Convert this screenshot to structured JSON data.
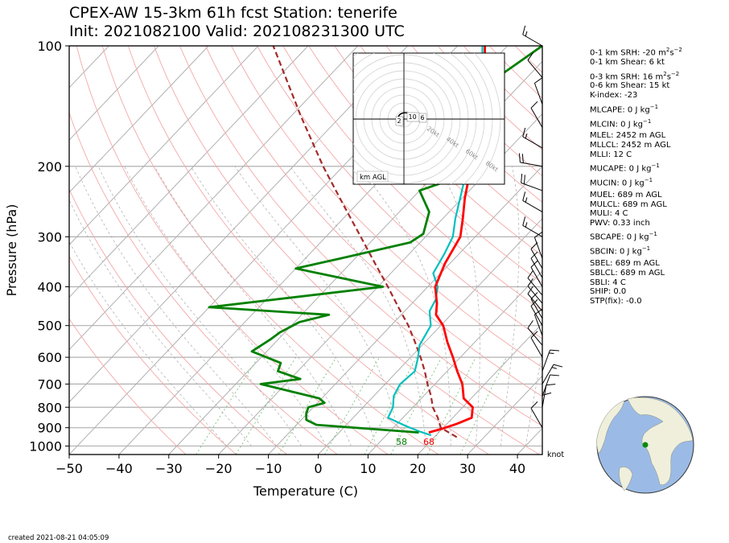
{
  "header": {
    "title_line1": "CPEX-AW 15-3km  61h fcst  Station: tenerife",
    "title_line2": "Init: 2021082100  Valid: 202108231300 UTC"
  },
  "footer": {
    "created": "created 2021-08-21 04:05:09"
  },
  "barb_units": "knot",
  "hodograph": {
    "label": "km AGL",
    "ring_labels": [
      "20kt",
      "40kt",
      "60kt",
      "80kt"
    ],
    "height_labels": [
      "2",
      "10",
      "6"
    ]
  },
  "indices": [
    {
      "label": "0-1 km SRH",
      "value": "-20",
      "unit": "m2s-2"
    },
    {
      "label": "0-1 km Shear",
      "value": "6",
      "unit": "kt"
    },
    {
      "label": "0-3 km SRH",
      "value": "16",
      "unit": "m2s-2"
    },
    {
      "label": "0-6 km Shear",
      "value": "15",
      "unit": "kt"
    },
    {
      "label": "K-index",
      "value": "-23",
      "unit": ""
    },
    {
      "label": "MLCAPE",
      "value": "0",
      "unit": "J kg-1"
    },
    {
      "label": "MLCIN",
      "value": "0",
      "unit": "J kg-1"
    },
    {
      "label": "MLEL",
      "value": "2452",
      "unit": "m AGL"
    },
    {
      "label": "MLLCL",
      "value": "2452",
      "unit": "m AGL"
    },
    {
      "label": "MLLI",
      "value": "12",
      "unit": "C"
    },
    {
      "label": "MUCAPE",
      "value": "0",
      "unit": "J kg-1"
    },
    {
      "label": "MUCIN",
      "value": "0",
      "unit": "J kg-1"
    },
    {
      "label": "MUEL",
      "value": "689",
      "unit": "m AGL"
    },
    {
      "label": "MULCL",
      "value": "689",
      "unit": "m AGL"
    },
    {
      "label": "MULI",
      "value": "4",
      "unit": "C"
    },
    {
      "label": "PWV",
      "value": "0.33",
      "unit": "inch"
    },
    {
      "label": "SBCAPE",
      "value": "0",
      "unit": "J kg-1"
    },
    {
      "label": "SBCIN",
      "value": "0",
      "unit": "J kg-1"
    },
    {
      "label": "SBEL",
      "value": "689",
      "unit": "m AGL"
    },
    {
      "label": "SBLCL",
      "value": "689",
      "unit": "m AGL"
    },
    {
      "label": "SBLI",
      "value": "4",
      "unit": "C"
    },
    {
      "label": "SHIP",
      "value": "0.0",
      "unit": ""
    },
    {
      "label": "STP(fix)",
      "value": "-0.0",
      "unit": ""
    }
  ],
  "chart_data": {
    "type": "line",
    "chart_kind": "skew-T log-P",
    "xlabel": "Temperature (C)",
    "ylabel": "Pressure (hPa)",
    "xlim": [
      -50,
      45
    ],
    "ylim": [
      1050,
      100
    ],
    "y_scale": "log",
    "x_ticks": [
      -50,
      -40,
      -30,
      -20,
      -10,
      0,
      10,
      20,
      30,
      40
    ],
    "y_ticks": [
      100,
      200,
      300,
      400,
      500,
      600,
      700,
      800,
      900,
      1000
    ],
    "surface_labels": {
      "dewpoint": "58",
      "temperature": "68"
    },
    "colors": {
      "temperature": "#ff0000",
      "dewpoint": "#008000",
      "virtual": "#00bfbf",
      "parcel": "#a52a2a"
    },
    "series": [
      {
        "key": "temperature",
        "points": [
          [
            925,
            18
          ],
          [
            905,
            20
          ],
          [
            880,
            22
          ],
          [
            850,
            23.8
          ],
          [
            800,
            22
          ],
          [
            760,
            18.5
          ],
          [
            700,
            15.5
          ],
          [
            650,
            12
          ],
          [
            600,
            8.5
          ],
          [
            550,
            4.5
          ],
          [
            500,
            0.5
          ],
          [
            470,
            -3
          ],
          [
            440,
            -5
          ],
          [
            400,
            -8.5
          ],
          [
            350,
            -11
          ],
          [
            300,
            -13
          ],
          [
            270,
            -16
          ],
          [
            240,
            -19.5
          ],
          [
            210,
            -23
          ],
          [
            180,
            -27.5
          ],
          [
            160,
            -31
          ],
          [
            140,
            -34.5
          ],
          [
            120,
            -38.5
          ],
          [
            100,
            -44.5
          ]
        ]
      },
      {
        "key": "dewpoint",
        "points": [
          [
            925,
            16
          ],
          [
            905,
            5
          ],
          [
            885,
            -6
          ],
          [
            860,
            -9
          ],
          [
            830,
            -10.2
          ],
          [
            800,
            -11
          ],
          [
            780,
            -8.6
          ],
          [
            760,
            -10.5
          ],
          [
            700,
            -25
          ],
          [
            680,
            -18
          ],
          [
            650,
            -24
          ],
          [
            620,
            -25
          ],
          [
            580,
            -33
          ],
          [
            540,
            -31.5
          ],
          [
            520,
            -31
          ],
          [
            490,
            -29
          ],
          [
            470,
            -24.5
          ],
          [
            450,
            -50
          ],
          [
            400,
            -19
          ],
          [
            360,
            -40
          ],
          [
            340,
            -33
          ],
          [
            310,
            -22
          ],
          [
            295,
            -21
          ],
          [
            260,
            -24
          ],
          [
            230,
            -30
          ],
          [
            220,
            -27
          ],
          [
            200,
            -30
          ],
          [
            180,
            -29
          ],
          [
            150,
            -31
          ],
          [
            120,
            -36
          ],
          [
            100,
            -33
          ]
        ]
      },
      {
        "key": "virtual",
        "points": [
          [
            940,
            19
          ],
          [
            920,
            16
          ],
          [
            890,
            12
          ],
          [
            850,
            7
          ],
          [
            800,
            6
          ],
          [
            750,
            4
          ],
          [
            700,
            3
          ],
          [
            650,
            3.5
          ],
          [
            600,
            1.5
          ],
          [
            560,
            -0.5
          ],
          [
            500,
            -2
          ],
          [
            460,
            -5
          ],
          [
            430,
            -6
          ],
          [
            400,
            -8
          ],
          [
            370,
            -11.5
          ],
          [
            330,
            -13
          ],
          [
            300,
            -14.5
          ],
          [
            270,
            -17.5
          ],
          [
            230,
            -21.5
          ],
          [
            200,
            -25
          ],
          [
            180,
            -29
          ],
          [
            160,
            -32.5
          ],
          [
            140,
            -35
          ],
          [
            120,
            -39
          ],
          [
            100,
            -45
          ]
        ]
      },
      {
        "key": "parcel",
        "points": [
          [
            950,
            24.5
          ],
          [
            900,
            19.5
          ],
          [
            850,
            17
          ],
          [
            800,
            14
          ],
          [
            750,
            11.5
          ],
          [
            700,
            8.5
          ],
          [
            650,
            5.5
          ],
          [
            600,
            2
          ],
          [
            550,
            -2
          ],
          [
            500,
            -6.5
          ],
          [
            450,
            -12
          ],
          [
            400,
            -18
          ],
          [
            350,
            -25
          ],
          [
            300,
            -33
          ],
          [
            250,
            -42.5
          ],
          [
            200,
            -54
          ],
          [
            150,
            -68
          ],
          [
            100,
            -87
          ]
        ]
      }
    ],
    "wind_barbs": [
      {
        "p": 100,
        "speed": 15,
        "dir": 300
      },
      {
        "p": 120,
        "speed": 10,
        "dir": 320
      },
      {
        "p": 140,
        "speed": 10,
        "dir": 340
      },
      {
        "p": 160,
        "speed": 10,
        "dir": 330
      },
      {
        "p": 180,
        "speed": 15,
        "dir": 300
      },
      {
        "p": 200,
        "speed": 20,
        "dir": 280
      },
      {
        "p": 230,
        "speed": 20,
        "dir": 290
      },
      {
        "p": 260,
        "speed": 15,
        "dir": 300
      },
      {
        "p": 300,
        "speed": 15,
        "dir": 300
      },
      {
        "p": 340,
        "speed": 10,
        "dir": 340
      },
      {
        "p": 360,
        "speed": 10,
        "dir": 330
      },
      {
        "p": 380,
        "speed": 10,
        "dir": 330
      },
      {
        "p": 400,
        "speed": 10,
        "dir": 330
      },
      {
        "p": 420,
        "speed": 10,
        "dir": 320
      },
      {
        "p": 440,
        "speed": 10,
        "dir": 320
      },
      {
        "p": 460,
        "speed": 10,
        "dir": 320
      },
      {
        "p": 480,
        "speed": 10,
        "dir": 330
      },
      {
        "p": 500,
        "speed": 10,
        "dir": 330
      },
      {
        "p": 530,
        "speed": 10,
        "dir": 340
      },
      {
        "p": 560,
        "speed": 10,
        "dir": 320
      },
      {
        "p": 600,
        "speed": 10,
        "dir": 330
      },
      {
        "p": 650,
        "speed": 15,
        "dir": 20
      },
      {
        "p": 700,
        "speed": 15,
        "dir": 30
      },
      {
        "p": 750,
        "speed": 10,
        "dir": 20
      },
      {
        "p": 800,
        "speed": 10,
        "dir": 10
      },
      {
        "p": 850,
        "speed": 10,
        "dir": 0
      },
      {
        "p": 900,
        "speed": 10,
        "dir": 330
      }
    ]
  }
}
